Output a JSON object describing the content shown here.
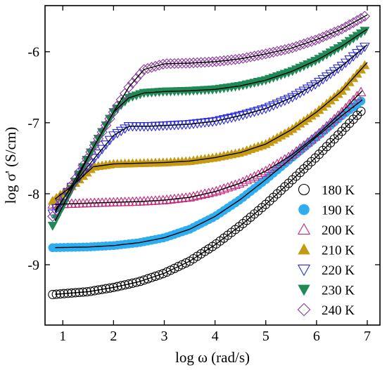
{
  "chart_data": {
    "type": "scatter",
    "xlabel": "log ω (rad/s)",
    "ylabel": "log σ' (S/cm)",
    "xlim": [
      0.65,
      7.25
    ],
    "ylim": [
      -9.85,
      -5.35
    ],
    "xticks": [
      1,
      2,
      3,
      4,
      5,
      6,
      7
    ],
    "yticks": [
      -9,
      -8,
      -7,
      -6
    ],
    "xtick_labels": [
      "1",
      "2",
      "3",
      "4",
      "5",
      "6",
      "7"
    ],
    "ytick_labels": [
      "-9",
      "-8",
      "-7",
      "-6"
    ],
    "grid": false,
    "legend_position": "bottom-right",
    "fit_line_color": "#000000",
    "series": [
      {
        "name": "180 K",
        "marker": "circle-open",
        "color": "#000000",
        "x": [
          0.8,
          1.5,
          2.0,
          2.5,
          3.0,
          3.5,
          4.0,
          4.5,
          5.0,
          5.5,
          6.0,
          6.5,
          6.9
        ],
        "y": [
          -9.42,
          -9.38,
          -9.32,
          -9.24,
          -9.12,
          -8.95,
          -8.72,
          -8.45,
          -8.15,
          -7.82,
          -7.48,
          -7.12,
          -6.82
        ]
      },
      {
        "name": "190 K",
        "marker": "circle-filled",
        "color": "#2eaef0",
        "x": [
          0.8,
          1.5,
          2.0,
          2.5,
          3.0,
          3.5,
          4.0,
          4.5,
          5.0,
          5.5,
          6.0,
          6.5,
          6.9
        ],
        "y": [
          -8.76,
          -8.75,
          -8.73,
          -8.69,
          -8.62,
          -8.5,
          -8.32,
          -8.08,
          -7.8,
          -7.5,
          -7.2,
          -6.9,
          -6.68
        ]
      },
      {
        "name": "200 K",
        "marker": "triangle-up-open",
        "color": "#c2267a",
        "x": [
          0.8,
          1.2,
          1.6,
          2.0,
          2.5,
          3.0,
          3.5,
          4.0,
          4.5,
          5.0,
          5.5,
          6.0,
          6.5,
          6.9
        ],
        "y": [
          -8.15,
          -8.14,
          -8.13,
          -8.12,
          -8.11,
          -8.09,
          -8.05,
          -7.97,
          -7.85,
          -7.68,
          -7.46,
          -7.18,
          -6.85,
          -6.55
        ]
      },
      {
        "name": "210 K",
        "marker": "triangle-up-filled",
        "color": "#c59a12",
        "x": [
          0.8,
          1.2,
          1.6,
          2.0,
          2.5,
          3.0,
          3.5,
          4.0,
          4.5,
          5.0,
          5.5,
          6.0,
          6.5,
          7.0
        ],
        "y": [
          -8.1,
          -7.88,
          -7.62,
          -7.58,
          -7.57,
          -7.56,
          -7.54,
          -7.49,
          -7.42,
          -7.3,
          -7.1,
          -6.85,
          -6.55,
          -6.15
        ]
      },
      {
        "name": "220 K",
        "marker": "triangle-down-open",
        "color": "#2a2adb",
        "x": [
          0.8,
          1.2,
          1.6,
          2.0,
          2.3,
          2.7,
          3.0,
          3.5,
          4.0,
          4.5,
          5.0,
          5.5,
          6.0,
          6.5,
          7.0
        ],
        "y": [
          -8.28,
          -7.88,
          -7.52,
          -7.18,
          -7.05,
          -7.05,
          -7.04,
          -7.02,
          -6.98,
          -6.9,
          -6.8,
          -6.65,
          -6.45,
          -6.2,
          -5.9
        ]
      },
      {
        "name": "230 K",
        "marker": "triangle-down-filled",
        "color": "#1f8a55",
        "x": [
          0.8,
          1.2,
          1.6,
          2.0,
          2.3,
          2.6,
          3.0,
          3.5,
          4.0,
          4.5,
          5.0,
          5.5,
          6.0,
          6.5,
          7.0
        ],
        "y": [
          -8.45,
          -7.9,
          -7.35,
          -6.85,
          -6.65,
          -6.58,
          -6.56,
          -6.55,
          -6.53,
          -6.48,
          -6.4,
          -6.28,
          -6.12,
          -5.92,
          -5.68
        ]
      },
      {
        "name": "240 K",
        "marker": "diamond-open",
        "color": "#8a3a9c",
        "x": [
          0.8,
          1.2,
          1.6,
          2.0,
          2.3,
          2.6,
          3.0,
          3.5,
          4.0,
          4.5,
          5.0,
          5.5,
          6.0,
          6.5,
          7.0
        ],
        "y": [
          -8.32,
          -7.85,
          -7.35,
          -6.85,
          -6.5,
          -6.25,
          -6.17,
          -6.16,
          -6.14,
          -6.1,
          -6.03,
          -5.95,
          -5.83,
          -5.68,
          -5.48
        ]
      }
    ]
  }
}
